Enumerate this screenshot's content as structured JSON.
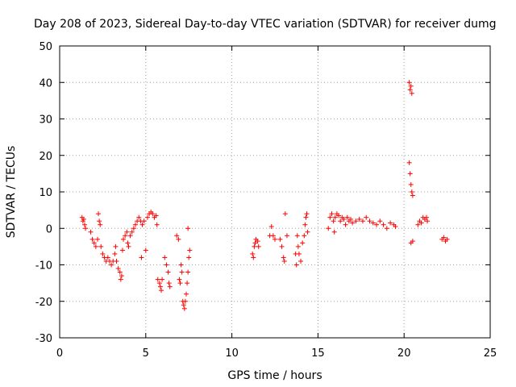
{
  "chart_data": {
    "type": "scatter",
    "title": "Day 208 of 2023, Sidereal Day-to-day VTEC variation (SDTVAR) for receiver dumg",
    "xlabel": "GPS time / hours",
    "ylabel": "SDTVAR / TECUs",
    "xlim": [
      0,
      25
    ],
    "ylim": [
      -30,
      50
    ],
    "xticks": [
      "0",
      "5",
      "10",
      "15",
      "20",
      "25"
    ],
    "yticks": [
      "50",
      "40",
      "30",
      "20",
      "10",
      "0",
      "-10",
      "-20",
      "-30"
    ],
    "grid": true,
    "marker": "+",
    "marker_color": "#ff0000",
    "series": [
      {
        "name": "SDTVAR",
        "points": [
          [
            1.3,
            3
          ],
          [
            1.35,
            2
          ],
          [
            1.4,
            2.5
          ],
          [
            1.45,
            1
          ],
          [
            1.5,
            0
          ],
          [
            1.8,
            -1
          ],
          [
            1.9,
            -3
          ],
          [
            2.0,
            -4
          ],
          [
            2.1,
            -5
          ],
          [
            2.2,
            -3
          ],
          [
            2.25,
            4
          ],
          [
            2.3,
            2
          ],
          [
            2.35,
            1
          ],
          [
            2.4,
            -5
          ],
          [
            2.5,
            -7
          ],
          [
            2.6,
            -8
          ],
          [
            2.7,
            -9
          ],
          [
            2.8,
            -8
          ],
          [
            2.9,
            -9
          ],
          [
            3.0,
            -10
          ],
          [
            3.1,
            -9
          ],
          [
            3.2,
            -7
          ],
          [
            3.25,
            -5
          ],
          [
            3.3,
            -9
          ],
          [
            3.4,
            -11
          ],
          [
            3.5,
            -12
          ],
          [
            3.55,
            -14
          ],
          [
            3.6,
            -13
          ],
          [
            3.65,
            -6
          ],
          [
            3.7,
            -3
          ],
          [
            3.8,
            -2
          ],
          [
            3.9,
            -1
          ],
          [
            3.95,
            -4
          ],
          [
            4.0,
            -5
          ],
          [
            4.1,
            -2
          ],
          [
            4.2,
            -1
          ],
          [
            4.3,
            0
          ],
          [
            4.4,
            1
          ],
          [
            4.5,
            2
          ],
          [
            4.6,
            3
          ],
          [
            4.7,
            2
          ],
          [
            4.75,
            -8
          ],
          [
            4.8,
            1
          ],
          [
            4.9,
            2
          ],
          [
            5.0,
            -6
          ],
          [
            5.1,
            3
          ],
          [
            5.2,
            4
          ],
          [
            5.3,
            4.5
          ],
          [
            5.4,
            4
          ],
          [
            5.5,
            3
          ],
          [
            5.6,
            3.5
          ],
          [
            5.65,
            1
          ],
          [
            5.7,
            -14
          ],
          [
            5.8,
            -15
          ],
          [
            5.85,
            -16
          ],
          [
            5.9,
            -17
          ],
          [
            5.95,
            -14
          ],
          [
            6.1,
            -8
          ],
          [
            6.2,
            -10
          ],
          [
            6.3,
            -12
          ],
          [
            6.35,
            -15
          ],
          [
            6.4,
            -16
          ],
          [
            6.8,
            -2
          ],
          [
            6.9,
            -3
          ],
          [
            6.95,
            -14
          ],
          [
            7.0,
            -15
          ],
          [
            7.05,
            -10
          ],
          [
            7.1,
            -12
          ],
          [
            7.15,
            -20
          ],
          [
            7.2,
            -21
          ],
          [
            7.25,
            -22
          ],
          [
            7.3,
            -20
          ],
          [
            7.35,
            -18
          ],
          [
            7.4,
            -15
          ],
          [
            7.45,
            -12
          ],
          [
            7.5,
            -8
          ],
          [
            7.55,
            -6
          ],
          [
            7.45,
            0
          ],
          [
            11.2,
            -7
          ],
          [
            11.25,
            -8
          ],
          [
            11.3,
            -5
          ],
          [
            11.35,
            -4
          ],
          [
            11.4,
            -3
          ],
          [
            11.5,
            -3.5
          ],
          [
            11.55,
            -5
          ],
          [
            12.2,
            -2
          ],
          [
            12.3,
            0.5
          ],
          [
            12.4,
            -2
          ],
          [
            12.5,
            -3
          ],
          [
            12.8,
            -3
          ],
          [
            12.9,
            -5
          ],
          [
            13.0,
            -8
          ],
          [
            13.05,
            -9
          ],
          [
            13.1,
            4
          ],
          [
            13.2,
            -2
          ],
          [
            13.7,
            -7
          ],
          [
            13.75,
            -10
          ],
          [
            13.8,
            -2
          ],
          [
            13.85,
            -5
          ],
          [
            13.9,
            -7
          ],
          [
            14.0,
            -9
          ],
          [
            14.1,
            -4
          ],
          [
            14.2,
            -2
          ],
          [
            14.25,
            1
          ],
          [
            14.3,
            3
          ],
          [
            14.35,
            4
          ],
          [
            14.4,
            -1
          ],
          [
            15.6,
            0
          ],
          [
            15.7,
            3
          ],
          [
            15.8,
            4
          ],
          [
            15.9,
            2
          ],
          [
            15.95,
            -1
          ],
          [
            16.0,
            3
          ],
          [
            16.1,
            4
          ],
          [
            16.2,
            3.5
          ],
          [
            16.3,
            2
          ],
          [
            16.4,
            3
          ],
          [
            16.5,
            2.5
          ],
          [
            16.6,
            1
          ],
          [
            16.7,
            3
          ],
          [
            16.8,
            2
          ],
          [
            16.9,
            2.5
          ],
          [
            17.0,
            1.5
          ],
          [
            17.2,
            2
          ],
          [
            17.4,
            2.5
          ],
          [
            17.6,
            2
          ],
          [
            17.8,
            3
          ],
          [
            18.0,
            2
          ],
          [
            18.2,
            1.5
          ],
          [
            18.4,
            1
          ],
          [
            18.6,
            2
          ],
          [
            18.8,
            1
          ],
          [
            19.0,
            0
          ],
          [
            19.2,
            1.5
          ],
          [
            19.4,
            1
          ],
          [
            19.5,
            0.5
          ],
          [
            20.3,
            40
          ],
          [
            20.35,
            38
          ],
          [
            20.4,
            39
          ],
          [
            20.45,
            37
          ],
          [
            20.3,
            18
          ],
          [
            20.35,
            15
          ],
          [
            20.4,
            12
          ],
          [
            20.45,
            10
          ],
          [
            20.5,
            9
          ],
          [
            20.4,
            -4
          ],
          [
            20.5,
            -3.5
          ],
          [
            20.8,
            1
          ],
          [
            20.9,
            2
          ],
          [
            21.0,
            1.5
          ],
          [
            21.1,
            3
          ],
          [
            21.2,
            2.5
          ],
          [
            21.3,
            3
          ],
          [
            21.35,
            2
          ],
          [
            22.2,
            -3
          ],
          [
            22.3,
            -2.5
          ],
          [
            22.4,
            -3.5
          ],
          [
            22.5,
            -3
          ]
        ]
      }
    ]
  }
}
